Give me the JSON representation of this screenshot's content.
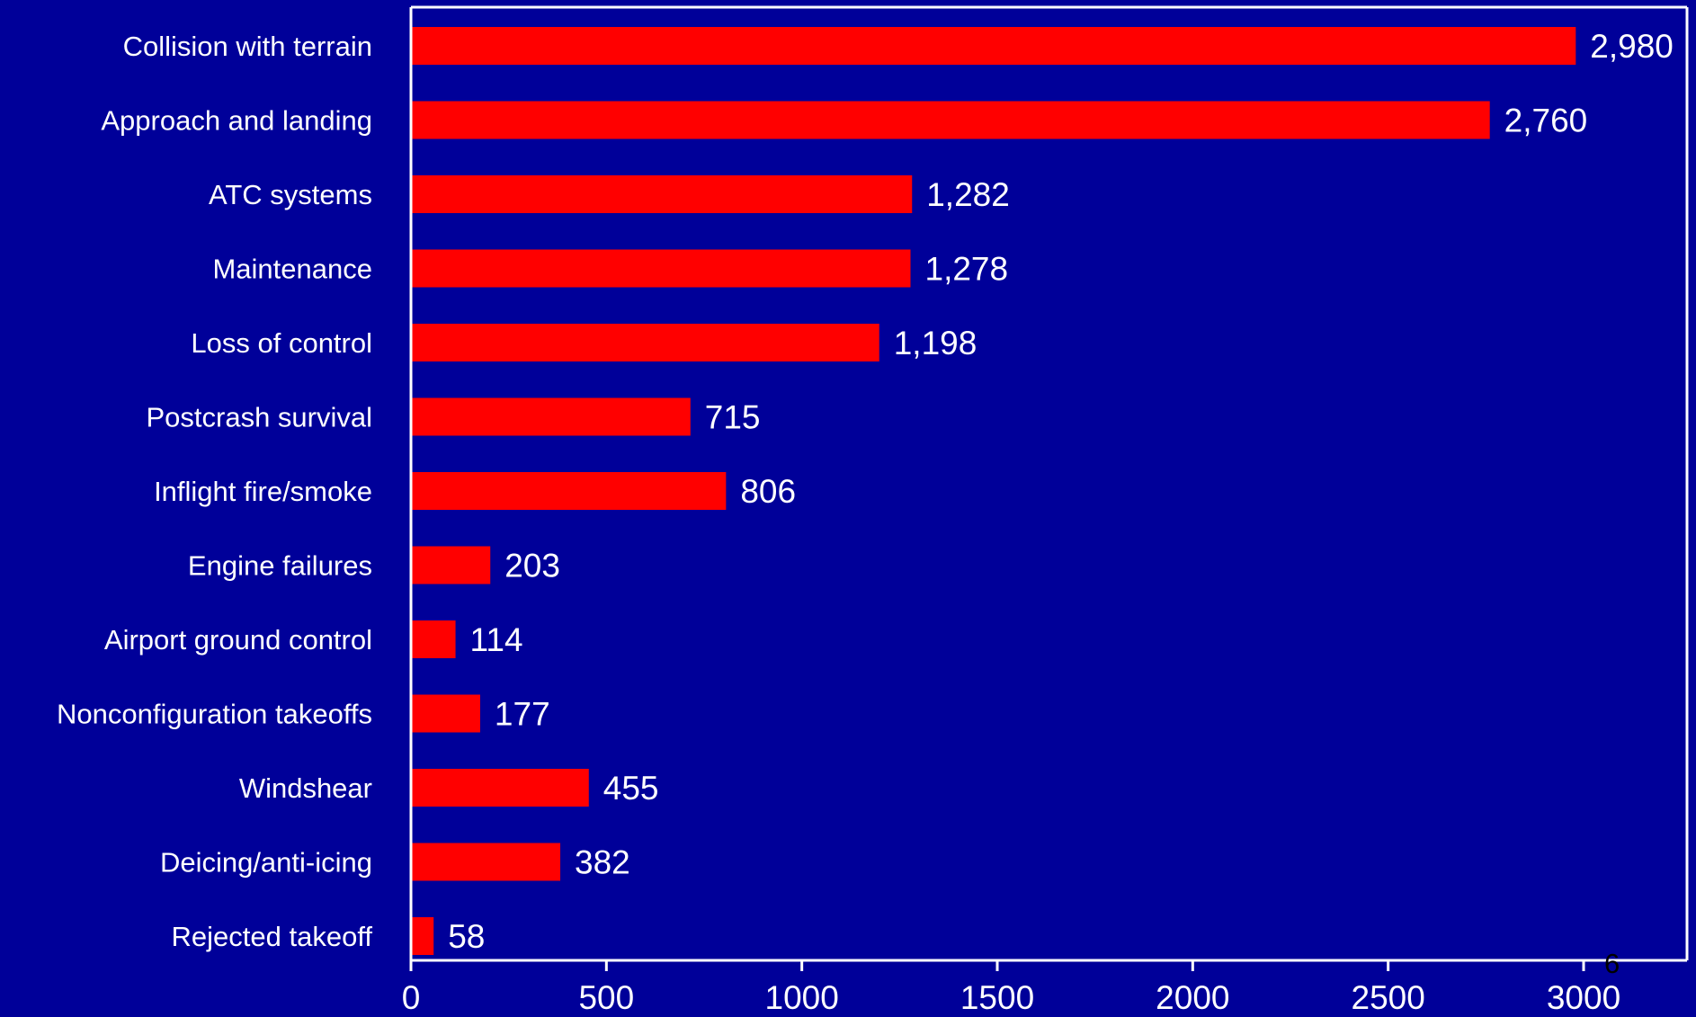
{
  "chart_data": {
    "type": "bar",
    "orientation": "horizontal",
    "categories": [
      "Collision with terrain",
      "Approach and landing",
      "ATC systems",
      "Maintenance",
      "Loss of control",
      "Postcrash survival",
      "Inflight fire/smoke",
      "Engine failures",
      "Airport ground control",
      "Nonconfiguration takeoffs",
      "Windshear",
      "Deicing/anti-icing",
      "Rejected takeoff"
    ],
    "values": [
      2980,
      2760,
      1282,
      1278,
      1198,
      715,
      806,
      203,
      114,
      177,
      455,
      382,
      58
    ],
    "value_labels": [
      "2,980",
      "2,760",
      "1,282",
      "1,278",
      "1,198",
      "715",
      "806",
      "203",
      "114",
      "177",
      "455",
      "382",
      "58"
    ],
    "xlim": [
      0,
      3000
    ],
    "xticks": [
      0,
      500,
      1000,
      1500,
      2000,
      2500,
      3000
    ],
    "grid": false,
    "colors": {
      "bar": "#ff0000",
      "background": "#000099",
      "text": "#ffffff"
    }
  },
  "page_number": "6"
}
